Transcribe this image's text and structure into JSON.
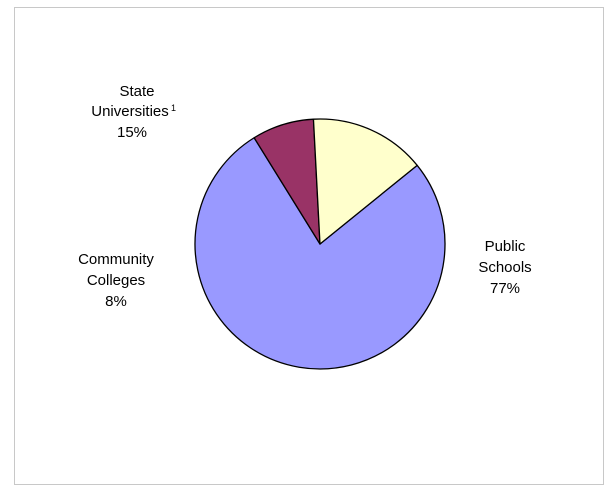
{
  "chart_data": {
    "type": "pie",
    "slices": [
      {
        "label_lines": [
          "Public",
          "Schools"
        ],
        "superscript": "",
        "value": 77,
        "value_label": "77%",
        "color": "#9999ff"
      },
      {
        "label_lines": [
          "Community",
          "Colleges"
        ],
        "superscript": "",
        "value": 8,
        "value_label": "8%",
        "color": "#993366"
      },
      {
        "label_lines": [
          "State",
          "Universities"
        ],
        "superscript": "1",
        "value": 15,
        "value_label": "15%",
        "color": "#ffffcc"
      }
    ],
    "start_angle_deg": -39,
    "direction": "clockwise",
    "edge_color": "#000000",
    "legend": "none"
  }
}
